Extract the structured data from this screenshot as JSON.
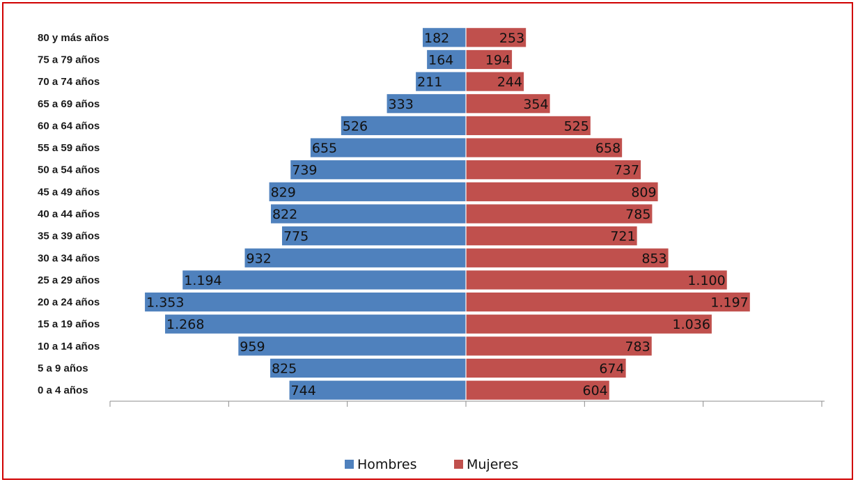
{
  "chart_data": {
    "type": "bar",
    "orientation": "horizontal",
    "layout": "population-pyramid",
    "categories": [
      "80 y más años",
      "75 a 79 años",
      "70 a 74 años",
      "65 a 69 años",
      "60 a 64 años",
      "55 a 59 años",
      "50 a 54 años",
      "45 a 49 años",
      "40 a 44 años",
      "35 a 39 años",
      "30 a 34 años",
      "25 a 29 años",
      "20 a 24 años",
      "15 a 19 años",
      "10 a 14 años",
      "5 a 9 años",
      "0 a 4 años"
    ],
    "series": [
      {
        "name": "Hombres",
        "color": "#4f81bd",
        "values": [
          182,
          164,
          211,
          333,
          526,
          655,
          739,
          829,
          822,
          775,
          932,
          1194,
          1353,
          1268,
          959,
          825,
          744
        ],
        "labels": [
          "182",
          "164",
          "211",
          "333",
          "526",
          "655",
          "739",
          "829",
          "822",
          "775",
          "932",
          "1.194",
          "1.353",
          "1.268",
          "959",
          "825",
          "744"
        ]
      },
      {
        "name": "Mujeres",
        "color": "#c0504d",
        "values": [
          253,
          194,
          244,
          354,
          525,
          658,
          737,
          809,
          785,
          721,
          853,
          1100,
          1197,
          1036,
          783,
          674,
          604
        ],
        "labels": [
          "253",
          "194",
          "244",
          "354",
          "525",
          "658",
          "737",
          "809",
          "785",
          "721",
          "853",
          "1.100",
          "1.197",
          "1.036",
          "783",
          "674",
          "604"
        ]
      }
    ],
    "xlim": [
      -1500,
      1500
    ],
    "grid": false,
    "legend": "bottom",
    "title": "",
    "xlabel": "",
    "ylabel": ""
  },
  "colors": {
    "frame_border": "#d00000",
    "axis": "#8c8c8c"
  }
}
